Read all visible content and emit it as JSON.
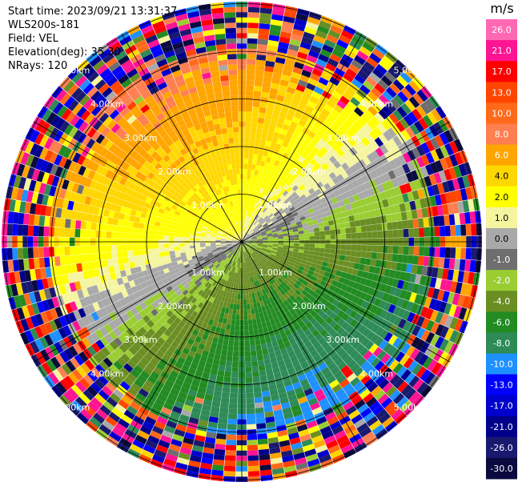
{
  "header": {
    "start_time": "Start time: 2023/09/21 13:31:37",
    "instrument": "WLS200s-181",
    "field": "Field: VEL",
    "elevation": "Elevation(deg): 35.30",
    "nrays": "NRays: 120"
  },
  "range_labels": [
    "1.00km",
    "2.00km",
    "3.00km",
    "4.00km",
    "5.00km"
  ],
  "colorbar": {
    "unit": "m/s",
    "ticks": [
      "26.0",
      "21.0",
      "17.0",
      "13.0",
      "10.0",
      "8.0",
      "6.0",
      "4.0",
      "2.0",
      "1.0",
      "0.0",
      "-1.0",
      "-2.0",
      "-4.0",
      "-6.0",
      "-8.0",
      "-10.0",
      "-13.0",
      "-17.0",
      "-21.0",
      "-26.0",
      "-30.0"
    ],
    "colors": [
      "#ff69b4",
      "#ff1493",
      "#ff0000",
      "#ff4500",
      "#ff6a1a",
      "#ff7f50",
      "#ffa500",
      "#ffd700",
      "#ffff00",
      "#f5f5a0",
      "#a9a9a9",
      "#6e6e6e",
      "#9acd32",
      "#6b8e23",
      "#228b22",
      "#2e8b57",
      "#1e90ff",
      "#0000ff",
      "#0000cd",
      "#00008b",
      "#191970",
      "#0a0a40"
    ]
  },
  "chart_data": {
    "type": "heatmap",
    "field": "VEL",
    "unit": "m/s",
    "nrays": 120,
    "elevation_deg": 35.3,
    "range_rings_km": [
      1,
      2,
      3,
      4,
      5
    ],
    "vmin": -30,
    "vmax": 26
  }
}
